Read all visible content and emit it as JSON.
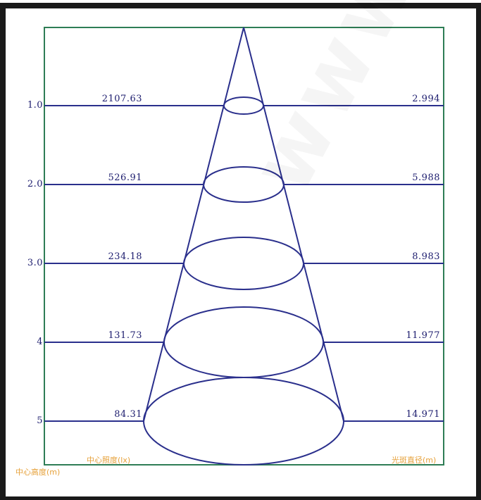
{
  "watermark": "www.",
  "captions": {
    "center_illuminance": "中心照度(lx)",
    "center_height": "中心高度(m)",
    "spot_diameter": "光斑直径(m)"
  },
  "rows": [
    {
      "height_label": "1.0",
      "illuminance": "2107.63",
      "diameter": "2.994"
    },
    {
      "height_label": "2.0",
      "illuminance": "526.91",
      "diameter": "5.988"
    },
    {
      "height_label": "3.0",
      "illuminance": "234.18",
      "diameter": "8.983"
    },
    {
      "height_label": "4",
      "illuminance": "131.73",
      "diameter": "11.977"
    },
    {
      "height_label": "5",
      "illuminance": "84.31",
      "diameter": "14.971"
    }
  ],
  "colors": {
    "line": "#2a2f8c",
    "box": "#2e7d55",
    "caption": "#e6a13a",
    "border": "#1a1a1a"
  }
}
